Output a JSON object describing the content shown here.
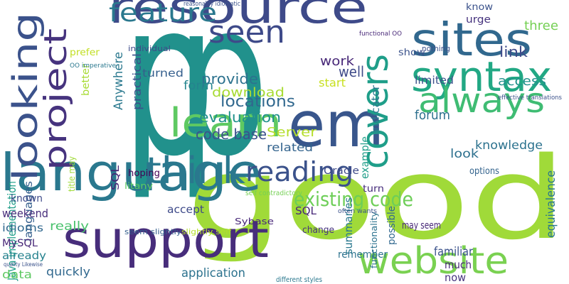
{
  "words": [
    {
      "text": "p",
      "color": "#21918c"
    },
    {
      "text": "p",
      "color": "#21918c"
    },
    {
      "text": "good",
      "color": "#a0da39"
    },
    {
      "text": "language",
      "color": "#2a788e"
    },
    {
      "text": "support",
      "color": "#472d7b"
    },
    {
      "text": "resource",
      "color": "#3e4a89"
    },
    {
      "text": "website",
      "color": "#7ad151"
    },
    {
      "text": "em",
      "color": "#39568c"
    },
    {
      "text": "learn",
      "color": "#5ec962"
    },
    {
      "text": "sites",
      "color": "#31688e"
    },
    {
      "text": "syntax",
      "color": "#22a884"
    },
    {
      "text": "always",
      "color": "#3fbc73"
    },
    {
      "text": "think",
      "color": "#2a788e"
    },
    {
      "text": "seen",
      "color": "#3e4a89"
    },
    {
      "text": "feature",
      "color": "#2a788e"
    },
    {
      "text": "looking",
      "color": "#3b528b"
    },
    {
      "text": "project",
      "color": "#46337e"
    },
    {
      "text": "covers",
      "color": "#1f9e89"
    },
    {
      "text": "reading",
      "color": "#3b528b"
    },
    {
      "text": "existing code",
      "color": "#6ece58"
    },
    {
      "text": "locations",
      "color": "#31688e"
    },
    {
      "text": "provide",
      "color": "#2c728e"
    },
    {
      "text": "evaluation",
      "color": "#21918c"
    },
    {
      "text": "code base",
      "color": "#3b528b"
    },
    {
      "text": "download",
      "color": "#a8db34"
    },
    {
      "text": "Server",
      "color": "#b5de2b"
    },
    {
      "text": "related",
      "color": "#33638d"
    },
    {
      "text": "well",
      "color": "#3e4a89"
    },
    {
      "text": "work",
      "color": "#482878"
    },
    {
      "text": "start",
      "color": "#c8e020"
    },
    {
      "text": "form",
      "color": "#25848e"
    },
    {
      "text": "turned",
      "color": "#355f8d"
    },
    {
      "text": "practical",
      "color": "#3b528b"
    },
    {
      "text": "Anywhere",
      "color": "#2a788e"
    },
    {
      "text": "SQL",
      "color": "#482475"
    },
    {
      "text": "Java implementation",
      "color": "#1f9e89"
    },
    {
      "text": "languages",
      "color": "#355f8d"
    },
    {
      "text": "known",
      "color": "#3e4a89"
    },
    {
      "text": "weekend",
      "color": "#472d7b"
    },
    {
      "text": "idioms",
      "color": "#31688e"
    },
    {
      "text": "really",
      "color": "#4ac16d"
    },
    {
      "text": "MySQL",
      "color": "#482878"
    },
    {
      "text": "already",
      "color": "#26828e"
    },
    {
      "text": "quickly",
      "color": "#31688e"
    },
    {
      "text": "data",
      "color": "#5ec962"
    },
    {
      "text": "application",
      "color": "#2c728e"
    },
    {
      "text": "accept",
      "color": "#3e4a89"
    },
    {
      "text": "hoping",
      "color": "#440154"
    },
    {
      "text": "litany",
      "color": "#5ec962"
    },
    {
      "text": "Sybase",
      "color": "#482878"
    },
    {
      "text": "change",
      "color": "#46337e"
    },
    {
      "text": "remember",
      "color": "#2c728e"
    },
    {
      "text": "summaries",
      "color": "#2a788e"
    },
    {
      "text": "possible",
      "color": "#31688e"
    },
    {
      "text": "functionality",
      "color": "#2c728e"
    },
    {
      "text": "familiar",
      "color": "#3b528b"
    },
    {
      "text": "much",
      "color": "#482878"
    },
    {
      "text": "now",
      "color": "#46337e"
    },
    {
      "text": "equivalence",
      "color": "#2a788e"
    },
    {
      "text": "knowledge",
      "color": "#2c728e"
    },
    {
      "text": "look",
      "color": "#2d708e"
    },
    {
      "text": "forum",
      "color": "#2d708e"
    },
    {
      "text": "options",
      "color": "#33638d"
    },
    {
      "text": "indicator",
      "color": "#2a788e"
    },
    {
      "text": "example",
      "color": "#1f9e89"
    },
    {
      "text": "access",
      "color": "#21918c"
    },
    {
      "text": "limited",
      "color": "#3b528b"
    },
    {
      "text": "link",
      "color": "#3e4a89"
    },
    {
      "text": "know",
      "color": "#3b528b"
    },
    {
      "text": "urge",
      "color": "#46337e"
    },
    {
      "text": "three",
      "color": "#75d054"
    },
    {
      "text": "show",
      "color": "#3b528b"
    },
    {
      "text": "nothing",
      "color": "#3b528b"
    },
    {
      "text": "prefer",
      "color": "#c2df23"
    },
    {
      "text": "individual",
      "color": "#3e4a89"
    },
    {
      "text": "better",
      "color": "#a8db34"
    },
    {
      "text": "SQL",
      "color": "#482878"
    },
    {
      "text": "Oracle",
      "color": "#3e4a89"
    },
    {
      "text": "turn",
      "color": "#472d7b"
    },
    {
      "text": "seem slightly",
      "color": "#355f8d"
    },
    {
      "text": "slightly self",
      "color": "#b5de2b"
    },
    {
      "text": "may seem",
      "color": "#482878"
    },
    {
      "text": "title may",
      "color": "#a0da39"
    },
    {
      "text": "different styles",
      "color": "#2a788e"
    },
    {
      "text": "self contradictory",
      "color": "#75d054"
    },
    {
      "text": "reasonably idiomatic",
      "color": "#3b528b"
    },
    {
      "text": "functional OO",
      "color": "#482878"
    },
    {
      "text": "effective translations",
      "color": "#3b528b"
    },
    {
      "text": "often wants",
      "color": "#3b528b"
    },
    {
      "text": "OO imperative",
      "color": "#2a788e"
    },
    {
      "text": "quality Likewise",
      "color": "#3b528b"
    }
  ]
}
